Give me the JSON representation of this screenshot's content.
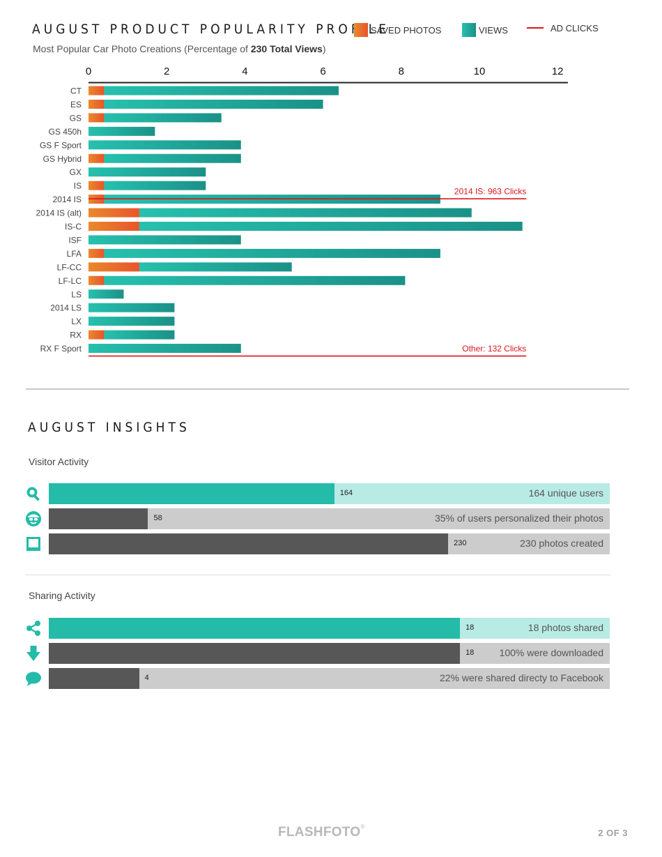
{
  "header": {
    "title": "AUGUST PRODUCT POPULARITY PROFILE",
    "subtitle_prefix": "Most Popular Car Photo Creations (Percentage of ",
    "subtitle_bold": "230 Total Views",
    "subtitle_suffix": ")"
  },
  "legend": {
    "saved_photos": "SAVED PHOTOS",
    "views": "VIEWS",
    "ad_clicks": "AD CLICKS"
  },
  "colors": {
    "saved_gradient_start": "#e9892c",
    "saved_gradient_end": "#e8552b",
    "views_gradient_start": "#26c0ad",
    "views_gradient_end": "#1b9188",
    "ad_clicks": "#d9171c",
    "teal": "#24bba9",
    "teal_light": "#b9ebe5",
    "dark_bar": "#575757",
    "gray_track": "#cccccc"
  },
  "chart_data": {
    "type": "bar",
    "orientation": "horizontal",
    "stacked": true,
    "xlim": [
      0,
      12
    ],
    "x_ticks": [
      "0",
      "2",
      "4",
      "6",
      "8",
      "10",
      "12"
    ],
    "categories": [
      "CT",
      "ES",
      "GS",
      "GS 450h",
      "GS F Sport",
      "GS Hybrid",
      "GX",
      "IS",
      "2014 IS",
      "2014 IS (alt)",
      "IS-C",
      "ISF",
      "LFA",
      "LF-CC",
      "LF-LC",
      "LS",
      "2014 LS",
      "LX",
      "RX",
      "RX F Sport"
    ],
    "series": [
      {
        "name": "SAVED PHOTOS",
        "values": [
          0.4,
          0.4,
          0.4,
          0,
          0,
          0.4,
          0,
          0.4,
          0.4,
          1.3,
          1.3,
          0,
          0.4,
          1.3,
          0.4,
          0,
          0,
          0,
          0.4,
          0
        ]
      },
      {
        "name": "VIEWS",
        "values": [
          6.0,
          5.6,
          3.0,
          1.7,
          3.9,
          3.5,
          3.0,
          2.6,
          8.6,
          8.5,
          9.8,
          3.9,
          8.6,
          3.9,
          7.7,
          0.9,
          2.2,
          2.2,
          1.8,
          3.9
        ]
      }
    ],
    "annotations": [
      {
        "series": "AD CLICKS",
        "label": "2014 IS: 963 Clicks",
        "category": "2014 IS",
        "x_end": 11.2
      },
      {
        "series": "AD CLICKS",
        "label": "Other: 132 Clicks",
        "category": "RX F Sport",
        "x_end": 11.2
      }
    ]
  },
  "insights": {
    "title": "AUGUST INSIGHTS",
    "visitor_label": "Visitor Activity",
    "sharing_label": "Sharing Activity",
    "visitor_rows": [
      {
        "icon": "magnifier-icon",
        "value": "164",
        "fraction": 0.509,
        "text": "164 unique users",
        "style": "teal"
      },
      {
        "icon": "face-icon",
        "value": "58",
        "fraction": 0.177,
        "text": "35% of users personalized their photos",
        "style": "dark"
      },
      {
        "icon": "photo-frame-icon",
        "value": "230",
        "fraction": 0.712,
        "text": "230 photos created",
        "style": "dark"
      }
    ],
    "sharing_rows": [
      {
        "icon": "share-icon",
        "value": "18",
        "fraction": 0.733,
        "text": "18 photos shared",
        "style": "teal"
      },
      {
        "icon": "download-icon",
        "value": "18",
        "fraction": 0.733,
        "text": "100% were downloaded",
        "style": "dark"
      },
      {
        "icon": "speech-bubble-icon",
        "value": "4",
        "fraction": 0.161,
        "text": "22% were shared directy to Facebook",
        "style": "dark"
      }
    ]
  },
  "footer": {
    "brand": "FLASHFOTO",
    "brand_mark": "®",
    "page": "2 OF 3"
  }
}
